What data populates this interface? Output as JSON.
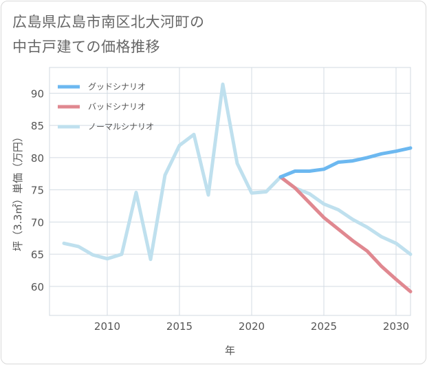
{
  "title_line1": "広島県広島市南区北大河町の",
  "title_line2": "中古戸建ての価格推移",
  "chart_data": {
    "type": "line",
    "xlabel": "年",
    "ylabel": "坪（3.3㎡）単価（万円）",
    "xlim": [
      2006,
      2031
    ],
    "ylim": [
      55.5,
      94
    ],
    "xticks": [
      2010,
      2015,
      2020,
      2025,
      2030
    ],
    "yticks": [
      60,
      65,
      70,
      75,
      80,
      85,
      90
    ],
    "grid": true,
    "legend_position": "top-left",
    "series": [
      {
        "name": "グッドシナリオ",
        "color": "#6cb8f0",
        "x": [
          2022,
          2023,
          2024,
          2025,
          2026,
          2027,
          2028,
          2029,
          2030,
          2031
        ],
        "y": [
          77.0,
          77.9,
          77.9,
          78.2,
          79.3,
          79.5,
          80.0,
          80.6,
          81.0,
          81.5
        ]
      },
      {
        "name": "バッドシナリオ",
        "color": "#e08890",
        "x": [
          2022,
          2023,
          2024,
          2025,
          2026,
          2027,
          2028,
          2029,
          2030,
          2031
        ],
        "y": [
          77.0,
          75.3,
          73.0,
          70.7,
          68.9,
          67.1,
          65.5,
          63.1,
          61.1,
          59.2
        ]
      },
      {
        "name": "ノーマルシナリオ",
        "color": "#bfe0ee",
        "x": [
          2007,
          2008,
          2009,
          2010,
          2011,
          2012,
          2013,
          2014,
          2015,
          2016,
          2017,
          2018,
          2019,
          2020,
          2021,
          2022,
          2023,
          2024,
          2025,
          2026,
          2027,
          2028,
          2029,
          2030,
          2031
        ],
        "y": [
          66.7,
          66.2,
          64.9,
          64.3,
          65.0,
          74.6,
          64.2,
          77.3,
          81.9,
          83.6,
          74.2,
          91.4,
          79.1,
          74.5,
          74.7,
          77.0,
          75.3,
          74.4,
          72.8,
          71.9,
          70.4,
          69.2,
          67.7,
          66.7,
          65.0
        ]
      }
    ]
  }
}
